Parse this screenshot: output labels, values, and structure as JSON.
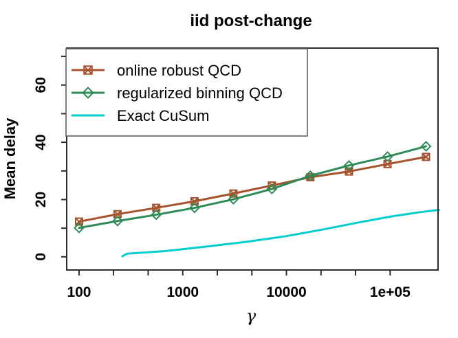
{
  "chart_data": {
    "type": "line",
    "title": "iid post-change",
    "xlabel": "γ",
    "ylabel": "Mean delay",
    "x_scale": "log10",
    "xlim": [
      76,
      290000
    ],
    "ylim": [
      -4.6,
      72.9
    ],
    "grid": false,
    "legend": {
      "position": "top-left"
    },
    "x_ticks": [
      {
        "value": 100,
        "label": "100"
      },
      {
        "value": 215
      },
      {
        "value": 464
      },
      {
        "value": 1000,
        "label": "1000"
      },
      {
        "value": 2154
      },
      {
        "value": 4642
      },
      {
        "value": 10000,
        "label": "10000"
      },
      {
        "value": 21544
      },
      {
        "value": 46416
      },
      {
        "value": 100000,
        "label": "1e+05"
      }
    ],
    "y_ticks": [
      {
        "value": 0,
        "label": "0"
      },
      {
        "value": 10
      },
      {
        "value": 20,
        "label": "20"
      },
      {
        "value": 30
      },
      {
        "value": 40,
        "label": "40"
      },
      {
        "value": 50
      },
      {
        "value": 60,
        "label": "60"
      },
      {
        "value": 70
      }
    ],
    "series": [
      {
        "name": "online robust QCD",
        "color": "#A5522D",
        "marker": "square-x",
        "points": [
          [
            100,
            12.3
          ],
          [
            235,
            14.9
          ],
          [
            555,
            17.1
          ],
          [
            1300,
            19.4
          ],
          [
            3080,
            22.1
          ],
          [
            7240,
            24.9
          ],
          [
            17000,
            27.8
          ],
          [
            40100,
            29.8
          ],
          [
            94500,
            32.4
          ],
          [
            222000,
            34.9
          ]
        ]
      },
      {
        "name": "regularized binning QCD",
        "color": "#2E8B57",
        "marker": "diamond",
        "points": [
          [
            100,
            10.1
          ],
          [
            235,
            12.5
          ],
          [
            555,
            14.7
          ],
          [
            1300,
            17.1
          ],
          [
            3080,
            20.1
          ],
          [
            7240,
            23.7
          ],
          [
            17000,
            28.3
          ],
          [
            40100,
            31.9
          ],
          [
            94500,
            35.0
          ],
          [
            222000,
            38.6
          ]
        ]
      },
      {
        "name": "Exact CuSum",
        "color": "#00CDCD",
        "marker": "none",
        "points": [
          [
            262,
            0.2
          ],
          [
            290,
            1.1
          ],
          [
            680,
            2.0
          ],
          [
            1700,
            3.6
          ],
          [
            4250,
            5.3
          ],
          [
            9900,
            7.2
          ],
          [
            22900,
            9.6
          ],
          [
            49500,
            12.0
          ],
          [
            107000,
            14.2
          ],
          [
            196000,
            15.6
          ],
          [
            296000,
            16.4
          ]
        ]
      }
    ]
  }
}
